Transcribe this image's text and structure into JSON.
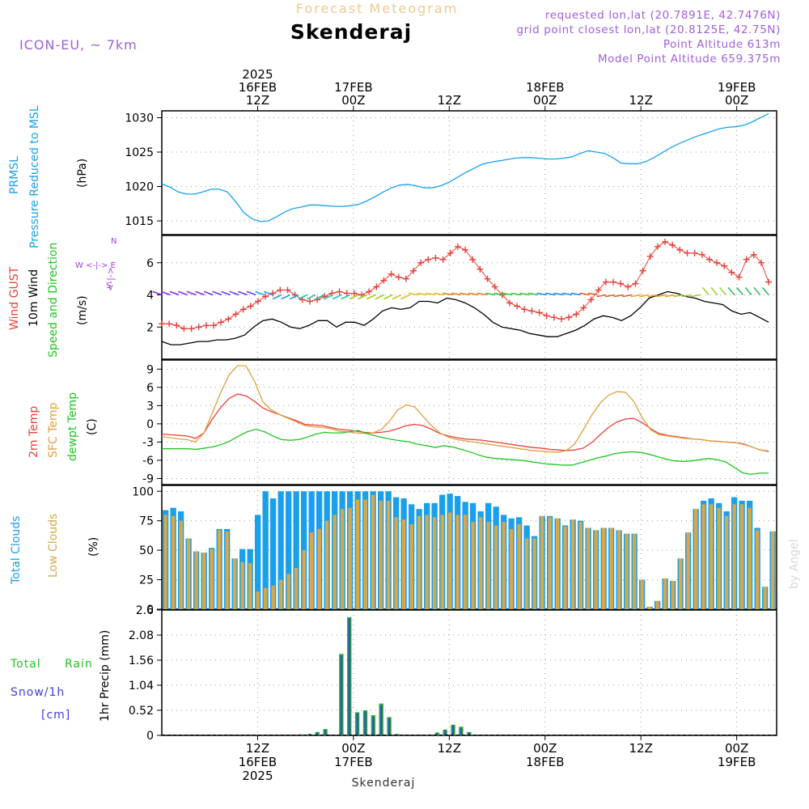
{
  "header": {
    "product": "Forecast Meteogram",
    "location": "Skenderaj",
    "model": "ICON-EU, ~ 7km",
    "requested": "requested lon,lat (20.7891E, 42.7476N)",
    "gridpoint": "grid point closest lon,lat (20.8125E, 42.75N)",
    "point_alt": "Point Altitude 613m",
    "model_alt": "Model Point Altitude 659.375m",
    "signature": "by Angel",
    "footer": "Skenderaj"
  },
  "colors": {
    "pressure": "#1aa0ea",
    "gust": "#e8413a",
    "wind": "#000000",
    "dir": "#22c422",
    "t2m": "#e8413a",
    "sfc": "#e0a040",
    "dew": "#22c422",
    "total_cloud": "#1aa0ea",
    "low_cloud": "#d8a848",
    "rain": "#22c422",
    "snow": "#4040e0",
    "compass": "#a040e0"
  },
  "chart_data": [
    {
      "id": "pressure",
      "type": "line",
      "ylabel_lines": [
        "PRMSL",
        "Pressure Reduced to MSL"
      ],
      "unit": "(hPa)",
      "ylim": [
        1013,
        1031
      ],
      "yticks": [
        1015,
        1020,
        1025,
        1030
      ],
      "series": [
        {
          "values": [
            1020.4,
            1019.9,
            1019.2,
            1018.9,
            1018.9,
            1019.2,
            1019.6,
            1019.6,
            1019.2,
            1017.8,
            1016.2,
            1015.3,
            1014.9,
            1015.0,
            1015.6,
            1016.3,
            1016.8,
            1017.0,
            1017.3,
            1017.3,
            1017.2,
            1017.1,
            1017.1,
            1017.2,
            1017.4,
            1017.9,
            1018.5,
            1019.2,
            1019.8,
            1020.2,
            1020.3,
            1020.1,
            1019.8,
            1019.8,
            1020.1,
            1020.6,
            1021.3,
            1022.0,
            1022.6,
            1023.2,
            1023.5,
            1023.7,
            1023.9,
            1024.1,
            1024.2,
            1024.2,
            1024.1,
            1024.0,
            1024.0,
            1024.1,
            1024.3,
            1024.8,
            1025.2,
            1025.0,
            1024.8,
            1024.2,
            1023.4,
            1023.3,
            1023.3,
            1023.6,
            1024.2,
            1024.9,
            1025.6,
            1026.2,
            1026.7,
            1027.2,
            1027.6,
            1028.0,
            1028.4,
            1028.6,
            1028.7,
            1028.9,
            1029.4,
            1030.0,
            1030.6
          ]
        }
      ]
    },
    {
      "id": "wind",
      "type": "line",
      "ylabel_lines": [
        "Wind GUST",
        "10m Wind",
        "Speed and Direction"
      ],
      "unit": "(m/s)",
      "ylim": [
        0,
        7.7
      ],
      "yticks": [
        2,
        4,
        6
      ],
      "compass": [
        "N",
        "W <-|-> E",
        "S"
      ],
      "series": [
        {
          "name": "Wind GUST",
          "values": [
            2.2,
            2.2,
            2.1,
            1.9,
            1.9,
            2.0,
            2.1,
            2.1,
            2.3,
            2.5,
            2.8,
            3.1,
            3.3,
            3.6,
            3.9,
            4.1,
            4.3,
            4.3,
            4.0,
            3.7,
            3.6,
            3.7,
            3.9,
            4.1,
            4.2,
            4.1,
            4.1,
            4.0,
            4.2,
            4.5,
            4.9,
            5.3,
            5.1,
            5.0,
            5.5,
            6.0,
            6.2,
            6.3,
            6.2,
            6.6,
            7.0,
            6.8,
            6.2,
            5.6,
            5.0,
            4.5,
            4.0,
            3.5,
            3.3,
            3.1,
            3.0,
            2.9,
            2.7,
            2.6,
            2.5,
            2.6,
            2.8,
            3.2,
            3.7,
            4.3,
            4.8,
            4.8,
            4.7,
            4.5,
            4.7,
            5.5,
            6.4,
            7.0,
            7.3,
            7.1,
            6.8,
            6.6,
            6.6,
            6.5,
            6.2,
            6.0,
            5.8,
            5.4,
            5.1,
            6.2,
            6.5,
            6.0,
            4.8
          ]
        },
        {
          "name": "10m Wind",
          "values": [
            1.1,
            0.9,
            0.9,
            1.0,
            1.1,
            1.1,
            1.2,
            1.2,
            1.3,
            1.5,
            2.0,
            2.4,
            2.5,
            2.3,
            2.0,
            1.9,
            2.1,
            2.4,
            2.4,
            2.0,
            2.3,
            2.3,
            2.1,
            2.5,
            3.0,
            3.2,
            3.1,
            3.2,
            3.6,
            3.6,
            3.5,
            3.8,
            3.7,
            3.5,
            3.2,
            2.8,
            2.3,
            2.0,
            1.9,
            1.8,
            1.6,
            1.5,
            1.4,
            1.4,
            1.6,
            1.8,
            2.1,
            2.5,
            2.7,
            2.6,
            2.4,
            2.7,
            3.2,
            3.8,
            4.0,
            4.2,
            4.1,
            3.9,
            3.8,
            3.6,
            3.5,
            3.4,
            3.0,
            2.8,
            2.9,
            2.6,
            2.3
          ]
        }
      ],
      "direction_arrows": 72
    },
    {
      "id": "temperature",
      "type": "line",
      "ylabel_lines": [
        "2m Temp",
        "SFC Temp",
        "dewpt Temp"
      ],
      "unit": "(C)",
      "ylim": [
        -10,
        10.5
      ],
      "yticks": [
        -9,
        -6,
        -3,
        0,
        3,
        6,
        9
      ],
      "series": [
        {
          "name": "2m Temp",
          "values": [
            -1.7,
            -1.8,
            -1.9,
            -2.0,
            -2.4,
            -1.5,
            0.8,
            2.7,
            4.2,
            4.9,
            4.6,
            3.7,
            2.6,
            2.0,
            1.5,
            1.0,
            0.5,
            -0.1,
            -0.2,
            -0.3,
            -0.6,
            -0.9,
            -1.0,
            -1.2,
            -1.4,
            -1.5,
            -1.4,
            -1.2,
            -0.8,
            -0.3,
            -0.1,
            -0.3,
            -0.9,
            -1.6,
            -2.0,
            -2.3,
            -2.5,
            -2.6,
            -2.7,
            -2.9,
            -3.1,
            -3.3,
            -3.5,
            -3.7,
            -3.9,
            -4.0,
            -4.2,
            -4.3,
            -4.4,
            -4.3,
            -4.0,
            -3.1,
            -1.8,
            -0.6,
            0.3,
            0.8,
            0.9,
            0.2,
            -0.8,
            -1.6,
            -1.9,
            -2.1,
            -2.3,
            -2.5,
            -2.6,
            -2.8,
            -2.9,
            -3.0,
            -3.1,
            -3.3,
            -3.8,
            -4.3,
            -4.5
          ]
        },
        {
          "name": "SFC Temp",
          "values": [
            -2.1,
            -2.3,
            -2.5,
            -2.6,
            -3.0,
            -1.5,
            1.8,
            5.2,
            8.1,
            9.6,
            9.5,
            7.0,
            3.6,
            2.3,
            1.5,
            0.9,
            0.3,
            -0.3,
            -0.5,
            -0.6,
            -0.8,
            -1.2,
            -1.3,
            -1.5,
            -1.6,
            -1.5,
            -1.0,
            0.4,
            2.3,
            3.1,
            2.8,
            1.2,
            -0.3,
            -1.5,
            -2.2,
            -2.6,
            -2.8,
            -3.0,
            -3.2,
            -3.4,
            -3.6,
            -3.8,
            -4.0,
            -4.2,
            -4.4,
            -4.5,
            -4.6,
            -4.7,
            -4.4,
            -3.3,
            -1.0,
            1.4,
            3.4,
            4.7,
            5.3,
            5.2,
            3.7,
            1.0,
            -1.0,
            -1.8,
            -2.0,
            -2.2,
            -2.4,
            -2.5,
            -2.6,
            -2.8,
            -2.9,
            -3.0,
            -3.1,
            -3.4,
            -3.8,
            -4.3,
            -4.6
          ]
        },
        {
          "name": "dewpt Temp",
          "values": [
            -4.1,
            -4.1,
            -4.1,
            -4.1,
            -4.2,
            -4.0,
            -3.8,
            -3.4,
            -2.8,
            -2.0,
            -1.3,
            -0.9,
            -1.3,
            -2.0,
            -2.6,
            -2.7,
            -2.6,
            -2.2,
            -1.7,
            -1.4,
            -1.5,
            -1.5,
            -1.3,
            -1.1,
            -1.6,
            -2.0,
            -2.3,
            -2.6,
            -2.8,
            -3.0,
            -3.4,
            -3.6,
            -3.9,
            -3.6,
            -3.8,
            -4.2,
            -4.6,
            -5.1,
            -5.5,
            -5.7,
            -5.8,
            -5.9,
            -6.0,
            -6.2,
            -6.4,
            -6.6,
            -6.7,
            -6.8,
            -6.8,
            -6.4,
            -6.0,
            -5.6,
            -5.3,
            -4.9,
            -4.7,
            -4.6,
            -4.7,
            -5.0,
            -5.4,
            -5.8,
            -6.1,
            -6.2,
            -6.1,
            -5.9,
            -5.7,
            -5.9,
            -6.3,
            -7.2,
            -8.1,
            -8.3,
            -8.1,
            -8.1
          ]
        }
      ]
    },
    {
      "id": "clouds",
      "type": "bar",
      "ylabel_lines": [
        "Total Clouds",
        "Low Clouds"
      ],
      "unit": "(%)",
      "ylim": [
        0,
        105
      ],
      "yticks": [
        0,
        25,
        50,
        75,
        100
      ],
      "series": [
        {
          "name": "Total Clouds",
          "values": [
            84,
            86,
            83,
            60,
            49,
            48,
            52,
            68,
            68,
            43,
            51,
            51,
            80,
            100,
            94,
            100,
            100,
            100,
            100,
            100,
            100,
            100,
            100,
            100,
            100,
            100,
            100,
            100,
            100,
            100,
            95,
            94,
            89,
            85,
            90,
            90,
            97,
            98,
            96,
            91,
            90,
            83,
            90,
            87,
            80,
            77,
            78,
            71,
            62,
            79,
            79,
            77,
            71,
            76,
            75,
            69,
            67,
            69,
            69,
            67,
            64,
            64,
            25,
            2,
            7,
            26,
            24,
            43,
            65,
            85,
            92,
            94,
            90,
            83,
            95,
            92,
            92,
            69,
            19,
            66
          ],
          "values_note": "one value per 1-hourly bar"
        },
        {
          "name": "Low Clouds",
          "values": [
            80,
            79,
            75,
            60,
            49,
            48,
            51,
            67,
            66,
            43,
            40,
            39,
            15,
            18,
            20,
            25,
            30,
            35,
            50,
            65,
            68,
            75,
            80,
            85,
            86,
            93,
            93,
            97,
            92,
            92,
            78,
            76,
            72,
            79,
            80,
            78,
            80,
            82,
            80,
            80,
            74,
            78,
            74,
            71,
            74,
            68,
            72,
            60,
            60,
            79,
            78,
            77,
            70,
            76,
            74,
            69,
            67,
            69,
            69,
            67,
            64,
            64,
            25,
            2,
            7,
            26,
            24,
            43,
            65,
            85,
            89,
            89,
            86,
            79,
            89,
            89,
            86,
            67,
            19,
            66
          ]
        }
      ]
    },
    {
      "id": "precip",
      "type": "bar",
      "ylabel_lines": [
        "Total",
        "Rain",
        "Snow/1h",
        "[cm]"
      ],
      "unit": "1hr Precip (mm)",
      "ylim": [
        0,
        2.6
      ],
      "yticks": [
        0,
        0.52,
        1.04,
        1.56,
        2.08,
        2.6
      ],
      "series": [
        {
          "name": "Total Rain",
          "bars": [
            [
              15,
              0.02
            ],
            [
              16,
              0.03
            ],
            [
              17,
              0.07
            ],
            [
              18,
              0.13
            ],
            [
              20,
              1.69
            ],
            [
              21,
              2.45
            ],
            [
              22,
              0.48
            ],
            [
              23,
              0.52
            ],
            [
              24,
              0.42
            ],
            [
              25,
              0.66
            ],
            [
              26,
              0.38
            ],
            [
              27,
              0.03
            ],
            [
              31,
              0.02
            ],
            [
              32,
              0.06
            ],
            [
              33,
              0.12
            ],
            [
              34,
              0.22
            ],
            [
              35,
              0.18
            ],
            [
              36,
              0.07
            ]
          ]
        },
        {
          "name": "Snow/1h",
          "bars": [
            [
              15,
              0.02
            ],
            [
              16,
              0.03
            ],
            [
              17,
              0.06
            ],
            [
              18,
              0.12
            ],
            [
              20,
              1.66
            ],
            [
              21,
              2.43
            ],
            [
              22,
              0.46
            ],
            [
              23,
              0.5
            ],
            [
              24,
              0.39
            ],
            [
              25,
              0.63
            ],
            [
              26,
              0.36
            ],
            [
              27,
              0.02
            ],
            [
              31,
              0.01
            ],
            [
              32,
              0.05
            ],
            [
              33,
              0.11
            ],
            [
              34,
              0.21
            ],
            [
              35,
              0.16
            ],
            [
              36,
              0.06
            ]
          ]
        }
      ]
    }
  ],
  "time_axis": {
    "top": [
      {
        "t": 12,
        "lines": [
          "2025",
          "16FEB",
          "12Z"
        ]
      },
      {
        "t": 24,
        "lines": [
          "17FEB",
          "00Z"
        ]
      },
      {
        "t": 36,
        "lines": [
          "12Z"
        ]
      },
      {
        "t": 48,
        "lines": [
          "18FEB",
          "00Z"
        ]
      },
      {
        "t": 60,
        "lines": [
          "12Z"
        ]
      },
      {
        "t": 72,
        "lines": [
          "19FEB",
          "00Z"
        ]
      }
    ],
    "bottom": [
      {
        "t": 12,
        "lines": [
          "12Z",
          "16FEB",
          "2025"
        ]
      },
      {
        "t": 24,
        "lines": [
          "00Z",
          "17FEB"
        ]
      },
      {
        "t": 36,
        "lines": [
          "12Z"
        ]
      },
      {
        "t": 48,
        "lines": [
          "00Z",
          "18FEB"
        ]
      },
      {
        "t": 60,
        "lines": [
          "12Z"
        ]
      },
      {
        "t": 72,
        "lines": [
          "00Z",
          "19FEB"
        ]
      }
    ],
    "range_hours": [
      0,
      77
    ]
  }
}
